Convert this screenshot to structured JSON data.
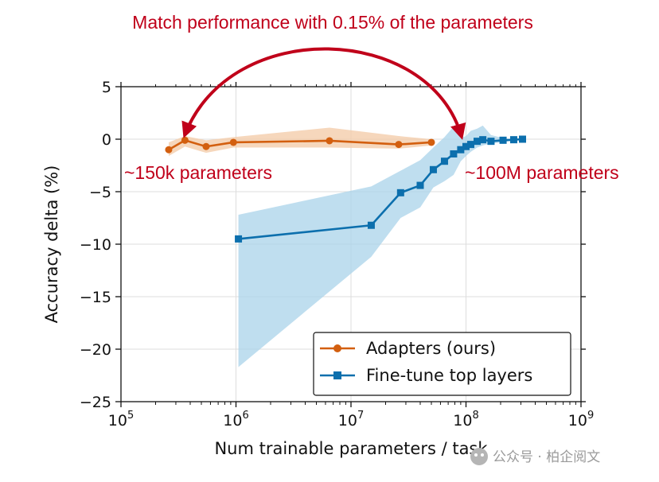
{
  "chart_data": {
    "type": "line",
    "title": "",
    "xlabel": "Num trainable parameters / task",
    "ylabel": "Accuracy delta (%)",
    "xscale": "log",
    "xlim": [
      100000,
      1000000000
    ],
    "ylim": [
      -25,
      5
    ],
    "grid": true,
    "legend_position": "bottom-right",
    "xticks": [
      {
        "base": "10",
        "exp": "5"
      },
      {
        "base": "10",
        "exp": "6"
      },
      {
        "base": "10",
        "exp": "7"
      },
      {
        "base": "10",
        "exp": "8"
      },
      {
        "base": "10",
        "exp": "9"
      }
    ],
    "yticks": [
      5,
      0,
      -5,
      -10,
      -15,
      -20,
      -25
    ],
    "ytick_labels": [
      "5",
      "0",
      "−5",
      "−10",
      "−15",
      "−20",
      "−25"
    ],
    "series": [
      {
        "name": "Adapters (ours)",
        "color": "#d35f0f",
        "marker": "circle",
        "x": [
          260000,
          360000,
          550000,
          950000,
          6500000,
          26000000,
          50000000
        ],
        "y": [
          -1.0,
          -0.1,
          -0.7,
          -0.3,
          -0.15,
          -0.5,
          -0.3
        ],
        "band_upper": [
          -0.3,
          0.3,
          -0.1,
          0.2,
          1.1,
          0.3,
          0.0
        ],
        "band_lower": [
          -1.6,
          -0.7,
          -1.3,
          -0.8,
          -0.8,
          -0.9,
          -0.6
        ]
      },
      {
        "name": "Fine-tune top layers",
        "color": "#0c6fad",
        "marker": "square",
        "x": [
          1050000,
          15000000,
          27000000,
          40000000,
          52000000,
          65000000,
          78000000,
          90000000,
          100000000,
          110000000,
          125000000,
          140000000,
          165000000,
          210000000,
          260000000,
          310000000
        ],
        "y": [
          -9.5,
          -8.2,
          -5.1,
          -4.4,
          -2.9,
          -2.1,
          -1.4,
          -1.0,
          -0.7,
          -0.5,
          -0.2,
          -0.05,
          -0.2,
          -0.1,
          -0.05,
          0.0
        ],
        "band_upper": [
          -7.2,
          -4.5,
          -3.0,
          -2.0,
          -0.8,
          0.2,
          1.2,
          0.1,
          0.3,
          0.8,
          1.0,
          1.3,
          0.4,
          0.1,
          0.0,
          0.0
        ],
        "band_lower": [
          -21.7,
          -11.2,
          -7.5,
          -6.5,
          -4.6,
          -4.0,
          -3.4,
          -2.1,
          -1.6,
          -1.2,
          -0.8,
          -0.6,
          -0.4,
          -0.3,
          -0.1,
          0.0
        ]
      }
    ],
    "annotations": {
      "headline": "Match performance with 0.15% of the parameters",
      "left_label": "~150k parameters",
      "right_label": "~100M parameters"
    }
  },
  "watermark": {
    "text": "公众号 · 柏企阅文"
  },
  "colors": {
    "annotation_red": "#c0001a",
    "adapters_band": "#f3c9a5",
    "finetune_band": "#a9d3ea",
    "grid": "#dddddd"
  }
}
